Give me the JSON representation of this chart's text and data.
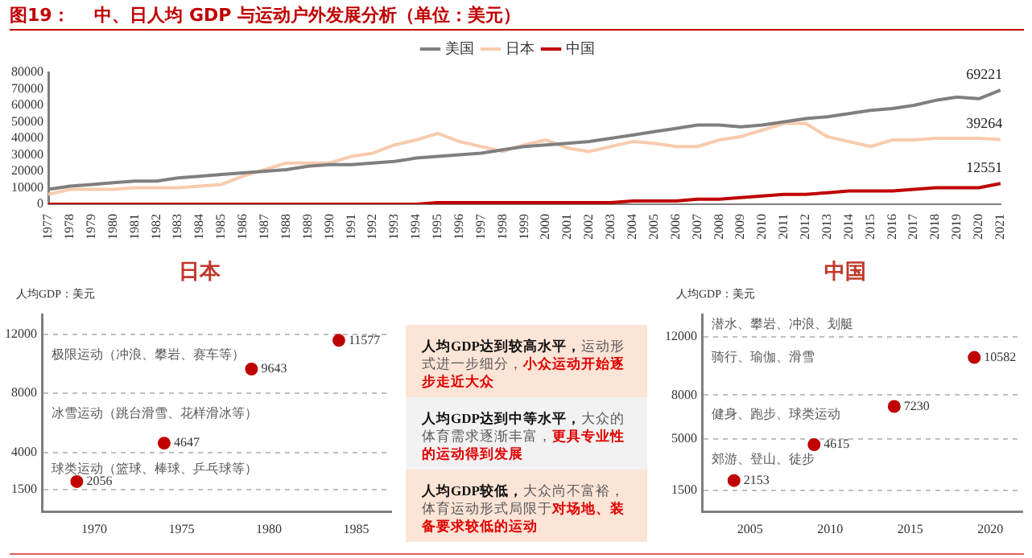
{
  "chart_data": [
    {
      "type": "line",
      "title": "图19：    中、日人均 GDP 与运动户外发展分析（单位：美元）",
      "categories": [
        "1977",
        "1978",
        "1979",
        "1980",
        "1981",
        "1982",
        "1983",
        "1984",
        "1985",
        "1986",
        "1987",
        "1988",
        "1989",
        "1990",
        "1991",
        "1992",
        "1993",
        "1994",
        "1995",
        "1996",
        "1997",
        "1998",
        "1999",
        "2000",
        "2001",
        "2002",
        "2003",
        "2004",
        "2005",
        "2006",
        "2007",
        "2008",
        "2009",
        "2010",
        "2011",
        "2012",
        "2013",
        "2014",
        "2015",
        "2016",
        "2017",
        "2018",
        "2019",
        "2020",
        "2021"
      ],
      "series": [
        {
          "name": "美国",
          "color": "#7f7f7f",
          "values": [
            9000,
            11000,
            12000,
            13000,
            14000,
            14000,
            16000,
            17000,
            18000,
            19000,
            20000,
            21000,
            23000,
            24000,
            24000,
            25000,
            26000,
            28000,
            29000,
            30000,
            31000,
            33000,
            35000,
            36000,
            37000,
            38000,
            40000,
            42000,
            44000,
            46000,
            48000,
            48000,
            47000,
            48000,
            50000,
            52000,
            53000,
            55000,
            57000,
            58000,
            60000,
            63000,
            65000,
            64000,
            69221
          ],
          "value_labels": [
            null,
            null,
            null,
            null,
            null,
            null,
            null,
            null,
            null,
            null,
            null,
            null,
            null,
            null,
            null,
            null,
            null,
            null,
            null,
            null,
            null,
            null,
            null,
            null,
            null,
            null,
            null,
            null,
            null,
            null,
            null,
            null,
            null,
            null,
            null,
            null,
            null,
            null,
            null,
            null,
            null,
            null,
            null,
            null,
            "69221"
          ]
        },
        {
          "name": "日本",
          "color": "#f8cbad",
          "values": [
            6000,
            9000,
            9000,
            9000,
            10000,
            10000,
            10000,
            11000,
            12000,
            17000,
            21000,
            25000,
            25000,
            25000,
            29000,
            31000,
            36000,
            39000,
            43000,
            38000,
            35000,
            32000,
            36000,
            39000,
            34000,
            32000,
            35000,
            38000,
            37000,
            35000,
            35000,
            39000,
            41000,
            45000,
            49000,
            49000,
            41000,
            38000,
            35000,
            39000,
            39000,
            40000,
            40000,
            40000,
            39264
          ],
          "value_labels": [
            null,
            null,
            null,
            null,
            null,
            null,
            null,
            null,
            null,
            null,
            null,
            null,
            null,
            null,
            null,
            null,
            null,
            null,
            null,
            null,
            null,
            null,
            null,
            null,
            null,
            null,
            null,
            null,
            null,
            null,
            null,
            null,
            null,
            null,
            null,
            null,
            null,
            null,
            null,
            null,
            null,
            null,
            null,
            null,
            "39264"
          ]
        },
        {
          "name": "中国",
          "color": "#c00000",
          "values": [
            0,
            0,
            0,
            0,
            0,
            0,
            0,
            0,
            0,
            0,
            0,
            0,
            0,
            0,
            0,
            0,
            0,
            0,
            1000,
            1000,
            1000,
            1000,
            1000,
            1000,
            1000,
            1000,
            1000,
            2000,
            2000,
            2000,
            3000,
            3000,
            4000,
            5000,
            6000,
            6000,
            7000,
            8000,
            8000,
            8000,
            9000,
            10000,
            10000,
            10000,
            12551
          ],
          "value_labels": [
            null,
            null,
            null,
            null,
            null,
            null,
            null,
            null,
            null,
            null,
            null,
            null,
            null,
            null,
            null,
            null,
            null,
            null,
            null,
            null,
            null,
            null,
            null,
            null,
            null,
            null,
            null,
            null,
            null,
            null,
            null,
            null,
            null,
            null,
            null,
            null,
            null,
            null,
            null,
            null,
            null,
            null,
            null,
            null,
            "12551"
          ]
        }
      ],
      "ylim": [
        0,
        80000
      ],
      "yticks": [
        0,
        10000,
        20000,
        30000,
        40000,
        50000,
        60000,
        70000,
        80000
      ],
      "legend": "top",
      "marker": "none"
    },
    {
      "type": "scatter",
      "title": "日本",
      "ylabel": "人均GDP：美元",
      "x": [
        1969,
        1974,
        1979,
        1984
      ],
      "values": [
        2056,
        4647,
        9643,
        11577
      ],
      "color": "#c00000",
      "xlim": [
        1967,
        1987
      ],
      "xticks": [
        1970,
        1975,
        1980,
        1985
      ],
      "ylim": [
        0,
        13300
      ],
      "yticks": [
        1500,
        4000,
        8000,
        12000
      ],
      "grid": "y",
      "marker": "circle",
      "data_labels": true,
      "annotations": [
        "极限运动（冲浪、攀岩、赛车等）",
        "冰雪运动（跳台滑雪、花样滑冰等）",
        "球类运动（篮球、棒球、乒乓球等）"
      ]
    },
    {
      "type": "other",
      "annotations": [
        "人均GDP达到较高水平，",
        "运动形式进一步细分，",
        "小众运动开始逐步走近大众",
        "人均GDP达到中等水平，",
        "大众的体育需求逐渐丰富，",
        "更具专业性的运动得到发展",
        "人均GDP较低，",
        "大众尚不富裕，体育运动形式局限于",
        "对场地、装备要求较低的运动"
      ]
    },
    {
      "type": "scatter",
      "title": "中国",
      "ylabel": "人均GDP：美元",
      "x": [
        2004,
        2009,
        2014,
        2019
      ],
      "values": [
        2153,
        4615,
        7230,
        10582
      ],
      "color": "#c00000",
      "xlim": [
        2002,
        2022
      ],
      "xticks": [
        2005,
        2010,
        2015,
        2020
      ],
      "ylim": [
        0,
        13500
      ],
      "yticks": [
        1500,
        5000,
        8000,
        12000
      ],
      "grid": "y",
      "marker": "circle",
      "data_labels": true,
      "annotations": [
        "潜水、攀岩、冲浪、划艇",
        "骑行、瑜伽、滑雪",
        "健身、跑步、球类运动",
        "郊游、登山、徒步"
      ]
    }
  ]
}
